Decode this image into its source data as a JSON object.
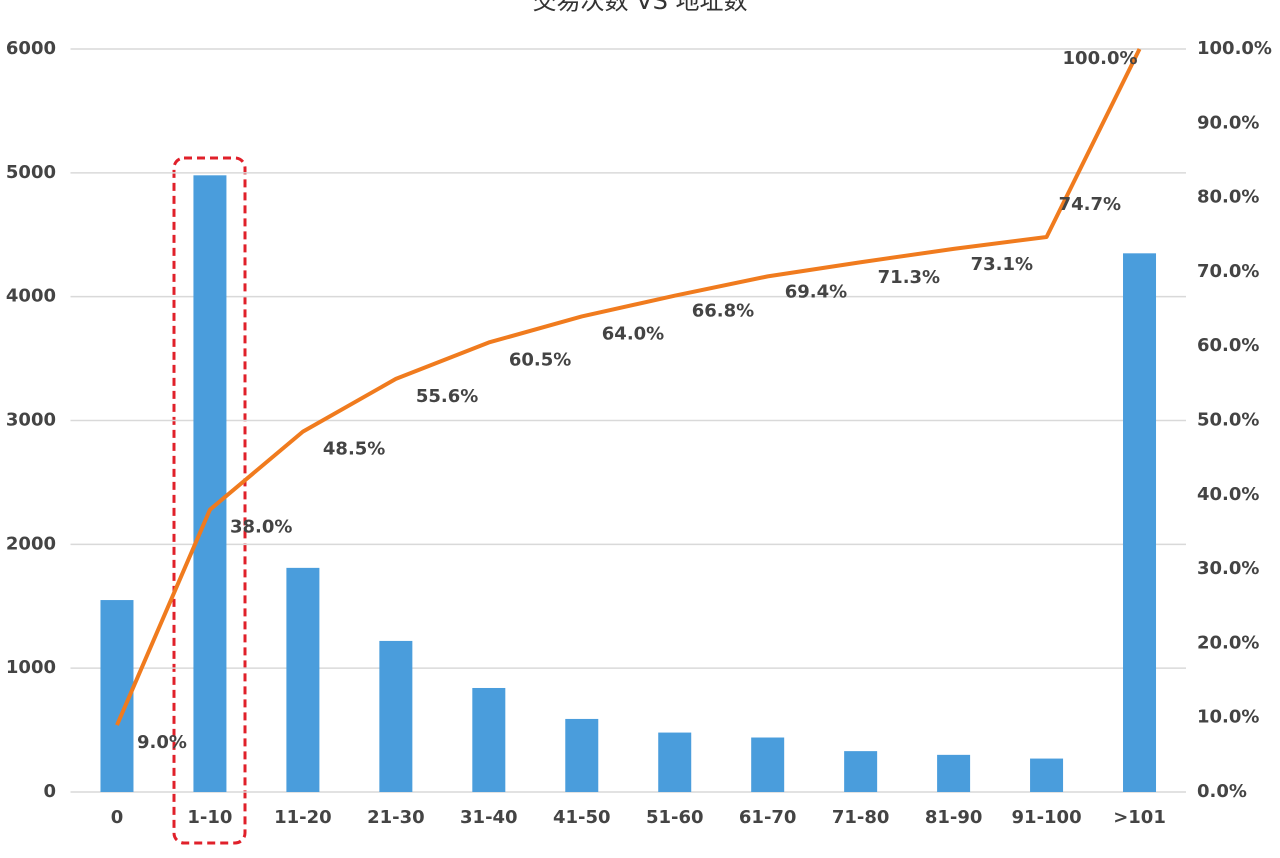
{
  "chart_data": {
    "type": "bar_line",
    "title": "交易次数 VS 地址数",
    "categories": [
      "0",
      "1-10",
      "11-20",
      "21-30",
      "31-40",
      "41-50",
      "51-60",
      "61-70",
      "71-80",
      "81-90",
      "91-100",
      ">101"
    ],
    "series": [
      {
        "type": "bar",
        "color": "#4a9ddc",
        "values": [
          1550,
          4980,
          1810,
          1220,
          840,
          590,
          480,
          440,
          330,
          300,
          270,
          4350
        ]
      },
      {
        "type": "line",
        "axis": "y2",
        "color": "#f07b1e",
        "values": [
          9.0,
          38.0,
          48.5,
          55.6,
          60.5,
          64.0,
          66.8,
          69.4,
          71.3,
          73.1,
          74.7,
          100.0
        ],
        "value_labels": [
          "9.0%",
          "38.0%",
          "48.5%",
          "55.6%",
          "60.5%",
          "64.0%",
          "66.8%",
          "69.4%",
          "71.3%",
          "73.1%",
          "74.7%",
          "100.0%"
        ]
      }
    ],
    "ylim": [
      0,
      6000
    ],
    "yticks": [
      0,
      1000,
      2000,
      3000,
      4000,
      5000,
      6000
    ],
    "y2lim": [
      0,
      100
    ],
    "y2ticks": [
      {
        "value": 0,
        "label": "0.0%"
      },
      {
        "value": 10,
        "label": "10.0%"
      },
      {
        "value": 20,
        "label": "20.0%"
      },
      {
        "value": 30,
        "label": "30.0%"
      },
      {
        "value": 40,
        "label": "40.0%"
      },
      {
        "value": 50,
        "label": "50.0%"
      },
      {
        "value": 60,
        "label": "60.0%"
      },
      {
        "value": 70,
        "label": "70.0%"
      },
      {
        "value": 80,
        "label": "80.0%"
      },
      {
        "value": 90,
        "label": "90.0%"
      },
      {
        "value": 100,
        "label": "100.0%"
      }
    ],
    "grid": true
  }
}
